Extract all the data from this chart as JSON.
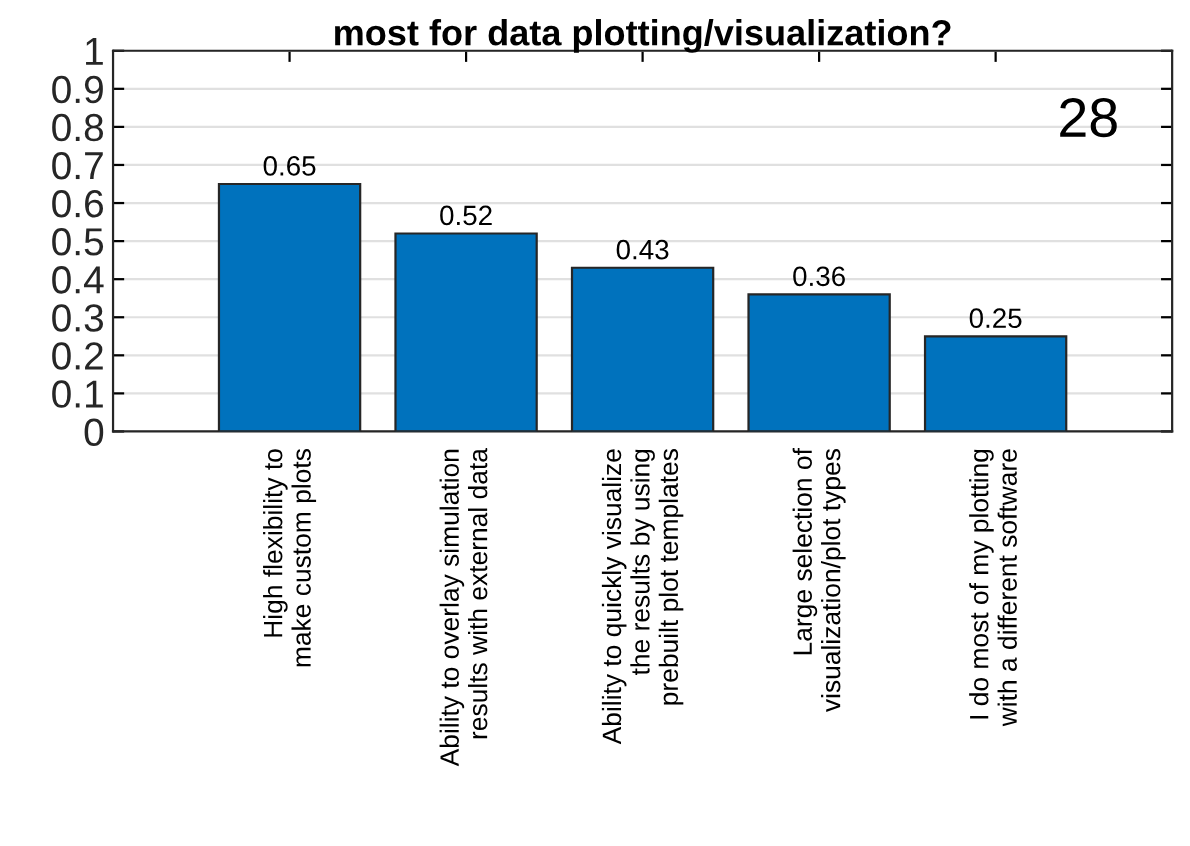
{
  "chart_data": {
    "type": "bar",
    "title": "most for data plotting/visualization?",
    "categories": [
      "High flexibility to\nmake custom plots",
      "Ability to overlay simulation\nresults with external data",
      "Ability to quickly visualize\nthe results by using\nprebuilt plot templates",
      "Large selection of\nvisualization/plot types",
      "I do most of my plotting\nwith a different software"
    ],
    "values": [
      0.65,
      0.52,
      0.43,
      0.36,
      0.25
    ],
    "color": "#0072bd",
    "data_labels": true,
    "ylim": [
      0,
      1
    ],
    "yticks": [
      0,
      0.1,
      0.2,
      0.3,
      0.4,
      0.5,
      0.6,
      0.7,
      0.8,
      0.9,
      1
    ],
    "grid": "y",
    "annotations": [
      "28"
    ]
  }
}
